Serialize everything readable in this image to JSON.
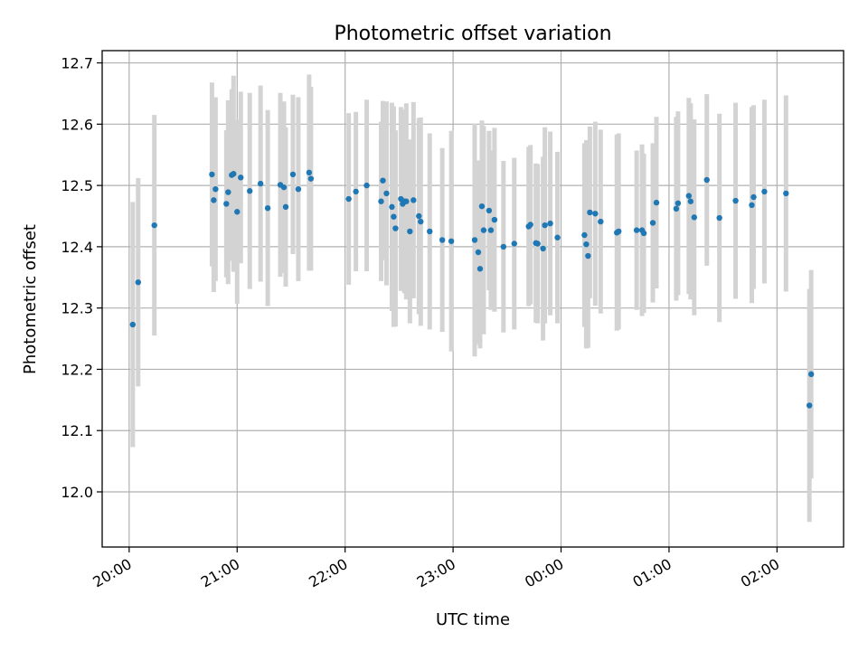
{
  "chart_data": {
    "type": "scatter",
    "title": "Photometric offset variation",
    "xlabel": "UTC time",
    "ylabel": "Photometric offset",
    "xlim": [
      "2023-01-01T19:45:00",
      "2023-01-02T02:37:00"
    ],
    "ylim": [
      11.91,
      12.72
    ],
    "x_ticks": [
      "20:00",
      "21:00",
      "22:00",
      "23:00",
      "00:00",
      "01:00",
      "02:00"
    ],
    "y_ticks": [
      "12.0",
      "12.1",
      "12.2",
      "12.3",
      "12.4",
      "12.5",
      "12.6",
      "12.7"
    ],
    "grid": true,
    "colors": {
      "point": "#1f77b4",
      "error_bar": "#d3d3d3",
      "grid": "#b0b0b0"
    },
    "series": [
      {
        "x": [
          "2023-01-01T20:02:00",
          "2023-01-01T20:05:00",
          "2023-01-01T20:14:00",
          "2023-01-01T20:46:00",
          "2023-01-01T20:47:00",
          "2023-01-01T20:48:00",
          "2023-01-01T20:54:00",
          "2023-01-01T20:55:00",
          "2023-01-01T20:57:00",
          "2023-01-01T20:58:00",
          "2023-01-01T21:00:00",
          "2023-01-01T21:02:00",
          "2023-01-01T21:07:00",
          "2023-01-01T21:13:00",
          "2023-01-01T21:17:00",
          "2023-01-01T21:24:00",
          "2023-01-01T21:26:00",
          "2023-01-01T21:27:00",
          "2023-01-01T21:31:00",
          "2023-01-01T21:34:00",
          "2023-01-01T21:40:00",
          "2023-01-01T21:41:00",
          "2023-01-01T22:02:00",
          "2023-01-01T22:06:00",
          "2023-01-01T22:12:00",
          "2023-01-01T22:20:00",
          "2023-01-01T22:21:00",
          "2023-01-01T22:23:00",
          "2023-01-01T22:26:00",
          "2023-01-01T22:27:00",
          "2023-01-01T22:28:00",
          "2023-01-01T22:31:00",
          "2023-01-01T22:32:00",
          "2023-01-01T22:33:00",
          "2023-01-01T22:34:00",
          "2023-01-01T22:36:00",
          "2023-01-01T22:38:00",
          "2023-01-01T22:41:00",
          "2023-01-01T22:42:00",
          "2023-01-01T22:47:00",
          "2023-01-01T22:54:00",
          "2023-01-01T22:59:00",
          "2023-01-01T23:12:00",
          "2023-01-01T23:14:00",
          "2023-01-01T23:15:00",
          "2023-01-01T23:16:00",
          "2023-01-01T23:17:00",
          "2023-01-01T23:20:00",
          "2023-01-01T23:21:00",
          "2023-01-01T23:23:00",
          "2023-01-01T23:28:00",
          "2023-01-01T23:34:00",
          "2023-01-01T23:42:00",
          "2023-01-01T23:43:00",
          "2023-01-01T23:46:00",
          "2023-01-01T23:47:00",
          "2023-01-01T23:50:00",
          "2023-01-01T23:51:00",
          "2023-01-01T23:54:00",
          "2023-01-01T23:58:00",
          "2023-01-02T00:13:00",
          "2023-01-02T00:14:00",
          "2023-01-02T00:15:00",
          "2023-01-02T00:16:00",
          "2023-01-02T00:19:00",
          "2023-01-02T00:22:00",
          "2023-01-02T00:31:00",
          "2023-01-02T00:32:00",
          "2023-01-02T00:42:00",
          "2023-01-02T00:45:00",
          "2023-01-02T00:46:00",
          "2023-01-02T00:51:00",
          "2023-01-02T00:53:00",
          "2023-01-02T01:04:00",
          "2023-01-02T01:05:00",
          "2023-01-02T01:11:00",
          "2023-01-02T01:12:00",
          "2023-01-02T01:14:00",
          "2023-01-02T01:21:00",
          "2023-01-02T01:28:00",
          "2023-01-02T01:37:00",
          "2023-01-02T01:46:00",
          "2023-01-02T01:47:00",
          "2023-01-02T01:53:00",
          "2023-01-02T02:05:00",
          "2023-01-02T02:18:00",
          "2023-01-02T02:19:00"
        ],
        "y": [
          12.273,
          12.342,
          12.435,
          12.518,
          12.476,
          12.494,
          12.47,
          12.489,
          12.517,
          12.519,
          12.457,
          12.513,
          12.491,
          12.503,
          12.463,
          12.501,
          12.497,
          12.465,
          12.518,
          12.494,
          12.521,
          12.511,
          12.478,
          12.49,
          12.5,
          12.474,
          12.508,
          12.487,
          12.465,
          12.449,
          12.43,
          12.478,
          12.47,
          12.474,
          12.474,
          12.425,
          12.476,
          12.45,
          12.441,
          12.425,
          12.411,
          12.409,
          12.411,
          12.391,
          12.364,
          12.466,
          12.427,
          12.459,
          12.427,
          12.444,
          12.4,
          12.405,
          12.433,
          12.436,
          12.406,
          12.405,
          12.397,
          12.435,
          12.438,
          12.415,
          12.419,
          12.404,
          12.385,
          12.456,
          12.454,
          12.441,
          12.423,
          12.425,
          12.427,
          12.427,
          12.422,
          12.439,
          12.472,
          12.462,
          12.471,
          12.483,
          12.474,
          12.448,
          12.509,
          12.447,
          12.475,
          12.468,
          12.481,
          12.49,
          12.487,
          12.141,
          12.192
        ],
        "yerr": [
          0.2,
          0.17,
          0.18,
          0.15,
          0.15,
          0.15,
          0.12,
          0.15,
          0.14,
          0.16,
          0.15,
          0.14,
          0.16,
          0.16,
          0.16,
          0.15,
          0.14,
          0.13,
          0.13,
          0.15,
          0.16,
          0.15,
          0.14,
          0.13,
          0.14,
          0.13,
          0.13,
          0.15,
          0.17,
          0.18,
          0.16,
          0.15,
          0.14,
          0.15,
          0.16,
          0.15,
          0.16,
          0.16,
          0.17,
          0.16,
          0.15,
          0.18,
          0.19,
          0.15,
          0.13,
          0.14,
          0.17,
          0.13,
          0.13,
          0.15,
          0.14,
          0.14,
          0.13,
          0.13,
          0.13,
          0.13,
          0.15,
          0.16,
          0.15,
          0.14,
          0.15,
          0.17,
          0.15,
          0.14,
          0.15,
          0.15,
          0.16,
          0.16,
          0.13,
          0.14,
          0.13,
          0.13,
          0.14,
          0.15,
          0.15,
          0.16,
          0.16,
          0.16,
          0.14,
          0.17,
          0.16,
          0.16,
          0.15,
          0.15,
          0.16,
          0.19,
          0.17
        ]
      }
    ]
  }
}
